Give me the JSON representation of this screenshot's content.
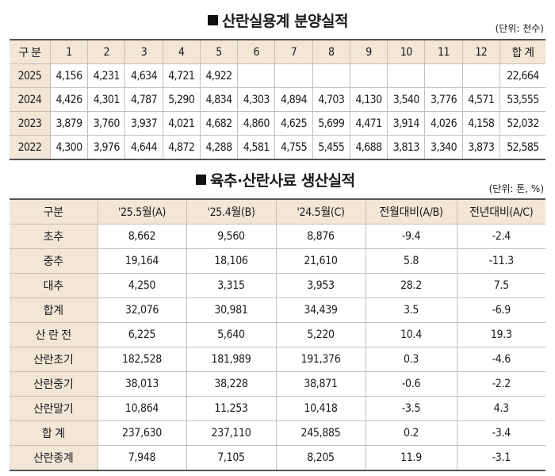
{
  "section1": {
    "title": "산란실용계 분양실적",
    "unit": "(단위: 천수)",
    "header": [
      "구 분",
      "1",
      "2",
      "3",
      "4",
      "5",
      "6",
      "7",
      "8",
      "9",
      "10",
      "11",
      "12",
      "합 계"
    ],
    "rows": [
      [
        "2025",
        "4,156",
        "4,231",
        "4,634",
        "4,721",
        "4,922",
        "",
        "",
        "",
        "",
        "",
        "",
        "",
        "22,664"
      ],
      [
        "2024",
        "4,426",
        "4,301",
        "4,787",
        "5,290",
        "4,834",
        "4,303",
        "4,894",
        "4,703",
        "4,130",
        "3,540",
        "3,776",
        "4,571",
        "53,555"
      ],
      [
        "2023",
        "3,879",
        "3,760",
        "3,937",
        "4,021",
        "4,682",
        "4,860",
        "4,625",
        "5,699",
        "4,471",
        "3,914",
        "4,026",
        "4,158",
        "52,032"
      ],
      [
        "2022",
        "4,300",
        "3,976",
        "4,644",
        "4,872",
        "4,288",
        "4,581",
        "4,755",
        "5,455",
        "4,688",
        "3,813",
        "3,340",
        "3,873",
        "52,585"
      ]
    ]
  },
  "section2": {
    "title": "육추·산란사료 생산실적",
    "unit": "(단위: 톤, %)",
    "header": [
      "구분",
      "'25.5월(A)",
      "'25.4월(B)",
      "'24.5월(C)",
      "전월대비(A/B)",
      "전년대비(A/C)"
    ],
    "rows": [
      [
        "초추",
        "8,662",
        "9,560",
        "8,876",
        "-9.4",
        "-2.4"
      ],
      [
        "중추",
        "19,164",
        "18,106",
        "21,610",
        "5.8",
        "-11.3"
      ],
      [
        "대추",
        "4,250",
        "3,315",
        "3,953",
        "28.2",
        "7.5"
      ],
      [
        "합계",
        "32,076",
        "30,981",
        "34,439",
        "3.5",
        "-6.9"
      ],
      [
        "산 란 전",
        "6,225",
        "5,640",
        "5,220",
        "10.4",
        "19.3"
      ],
      [
        "산란초기",
        "182,528",
        "181,989",
        "191,376",
        "0.3",
        "-4.6"
      ],
      [
        "산란중기",
        "38,013",
        "38,228",
        "38,871",
        "-0.6",
        "-2.2"
      ],
      [
        "산란말기",
        "10,864",
        "11,253",
        "10,418",
        "-3.5",
        "4.3"
      ],
      [
        "합 계",
        "237,630",
        "237,110",
        "245,885",
        "0.2",
        "-3.4"
      ],
      [
        "산란종계",
        "7,948",
        "7,105",
        "8,205",
        "11.9",
        "-3.1"
      ]
    ]
  }
}
